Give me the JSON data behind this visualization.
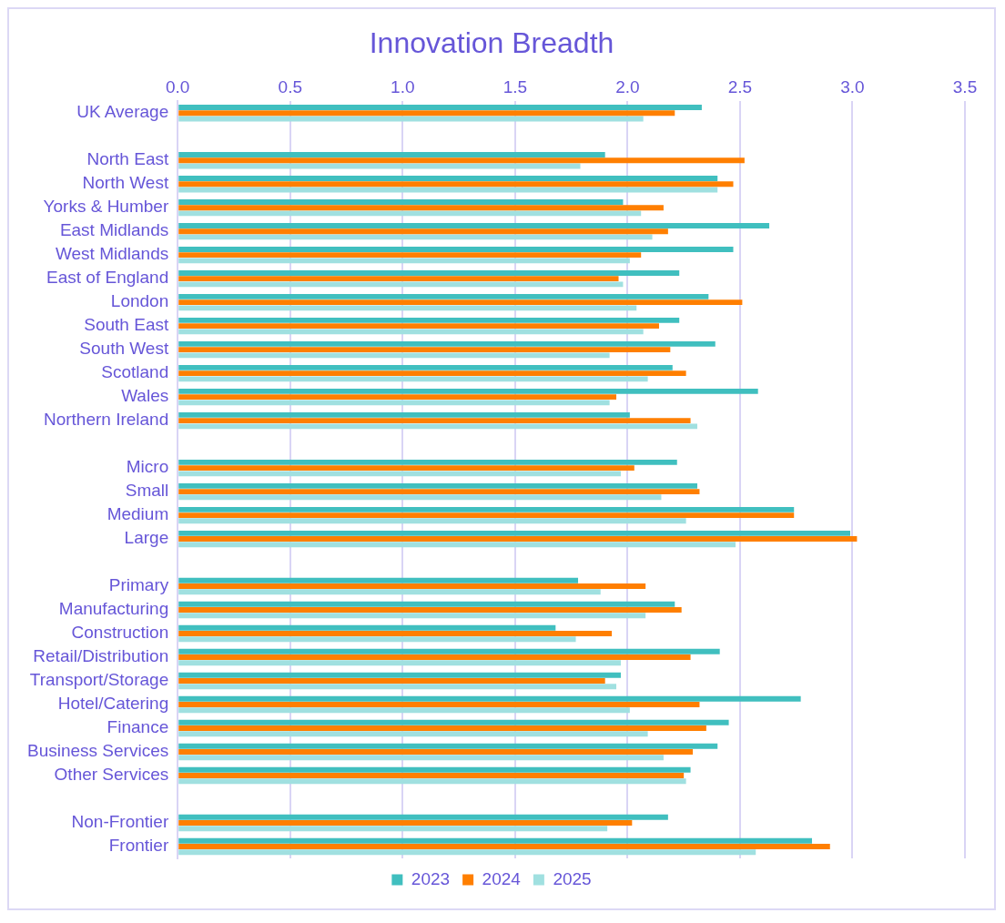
{
  "chart_data": {
    "type": "bar",
    "orientation": "horizontal",
    "title": "Innovation Breadth",
    "categories": [
      "UK Average",
      null,
      "North East",
      "North West",
      "Yorks & Humber",
      "East Midlands",
      "West Midlands",
      "East of England",
      "London",
      "South East",
      "South West",
      "Scotland",
      "Wales",
      "Northern Ireland",
      null,
      "Micro",
      "Small",
      "Medium",
      "Large",
      null,
      "Primary",
      "Manufacturing",
      "Construction",
      "Retail/Distribution",
      "Transport/Storage",
      "Hotel/Catering",
      "Finance",
      "Business Services",
      "Other Services",
      null,
      "Non-Frontier",
      "Frontier"
    ],
    "series": [
      {
        "name": "2023",
        "color": "#40bfbf",
        "values": [
          2.33,
          null,
          1.9,
          2.4,
          1.98,
          2.63,
          2.47,
          2.23,
          2.36,
          2.23,
          2.39,
          2.2,
          2.58,
          2.01,
          null,
          2.22,
          2.31,
          2.74,
          2.99,
          null,
          1.78,
          2.21,
          1.68,
          2.41,
          1.97,
          2.77,
          2.45,
          2.4,
          2.28,
          null,
          2.18,
          2.82
        ]
      },
      {
        "name": "2024",
        "color": "#ff7f00",
        "values": [
          2.21,
          null,
          2.52,
          2.47,
          2.16,
          2.18,
          2.06,
          1.96,
          2.51,
          2.14,
          2.19,
          2.26,
          1.95,
          2.28,
          null,
          2.03,
          2.32,
          2.74,
          3.02,
          null,
          2.08,
          2.24,
          1.93,
          2.28,
          1.9,
          2.32,
          2.35,
          2.29,
          2.25,
          null,
          2.02,
          2.9
        ]
      },
      {
        "name": "2025",
        "color": "#a0e0e0",
        "values": [
          2.07,
          null,
          1.79,
          2.4,
          2.06,
          2.11,
          2.01,
          1.98,
          2.04,
          2.07,
          1.92,
          2.09,
          1.92,
          2.31,
          null,
          1.97,
          2.15,
          2.26,
          2.48,
          null,
          1.88,
          2.08,
          1.77,
          1.97,
          1.95,
          2.01,
          2.09,
          2.16,
          2.26,
          null,
          1.91,
          2.57
        ]
      }
    ],
    "xlim": [
      0,
      3.5
    ],
    "xticks": [
      {
        "value": 0,
        "label": "0.0"
      },
      {
        "value": 0.5,
        "label": "0.5"
      },
      {
        "value": 1,
        "label": "1.0"
      },
      {
        "value": 1.5,
        "label": "1.5"
      },
      {
        "value": 2,
        "label": "2.0"
      },
      {
        "value": 2.5,
        "label": "2.5"
      },
      {
        "value": 3,
        "label": "3.0"
      },
      {
        "value": 3.5,
        "label": "3.5"
      }
    ],
    "grid": "x",
    "legend": "bottom"
  }
}
